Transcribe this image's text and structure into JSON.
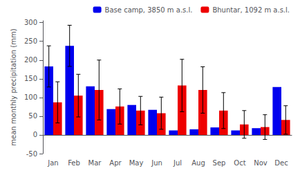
{
  "chart_data": {
    "type": "bar",
    "ylabel": "mean monthly precipitation (mm)",
    "categories": [
      "Jan",
      "Feb",
      "Mar",
      "Apr",
      "May",
      "Jun",
      "Jul",
      "Aug",
      "Sep",
      "Oct",
      "Nov",
      "Dec"
    ],
    "series": [
      {
        "name": "Base camp, 3850 m a.s.l.",
        "color": "#0000ee",
        "values": [
          183,
          238,
          130,
          69,
          80,
          67,
          12,
          15,
          20,
          12,
          18,
          128
        ],
        "error_upper": [
          55,
          55,
          0,
          0,
          0,
          0,
          0,
          0,
          0,
          0,
          0,
          0
        ],
        "error_lower": [
          55,
          55,
          0,
          0,
          0,
          0,
          0,
          0,
          0,
          0,
          0,
          0
        ]
      },
      {
        "name": "Bhuntar, 1092 m a.s.l.",
        "color": "#ee0000",
        "values": [
          87,
          105,
          120,
          76,
          65,
          58,
          132,
          120,
          65,
          28,
          21,
          40
        ],
        "error_upper": [
          55,
          57,
          80,
          47,
          38,
          43,
          70,
          62,
          48,
          37,
          33,
          38
        ],
        "error_lower": [
          55,
          57,
          80,
          47,
          38,
          43,
          70,
          62,
          48,
          37,
          33,
          38
        ]
      }
    ],
    "ylim": [
      -50,
      305
    ],
    "yticks": [
      -50,
      0,
      50,
      100,
      150,
      200,
      250,
      300
    ],
    "grid": false,
    "legend": "upper right"
  }
}
